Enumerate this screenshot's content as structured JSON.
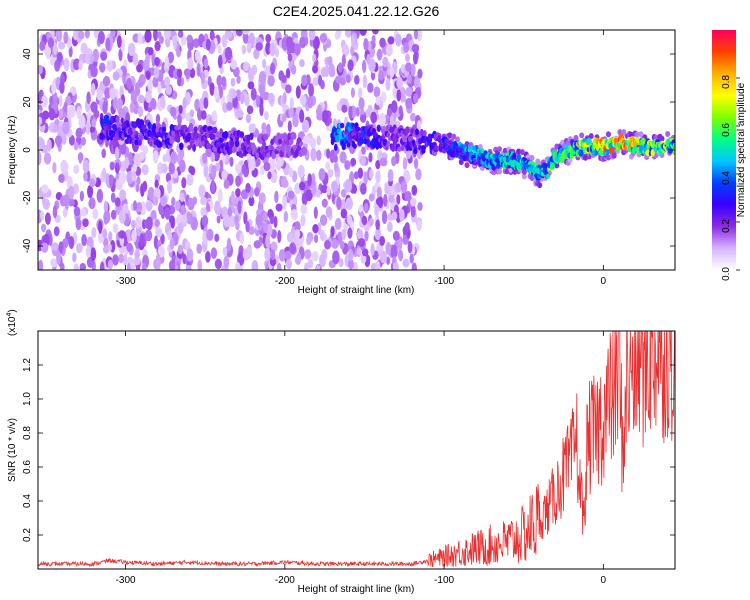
{
  "title": "C2E4.2025.041.22.12.G26",
  "chart_data": [
    {
      "type": "heatmap",
      "xlabel": "Height of straight line (km)",
      "ylabel": "Frequency (Hz)",
      "xlim": [
        -355,
        45
      ],
      "ylim": [
        -50,
        50
      ],
      "xticks": [
        -300,
        -200,
        -100,
        0
      ],
      "yticks": [
        -40,
        -20,
        0,
        20,
        40
      ],
      "colorbar": {
        "label": "Normalized spectral amplitude",
        "range": [
          0,
          1
        ],
        "ticks": [
          "0.0",
          "0.2",
          "0.4",
          "0.6",
          "0.8"
        ],
        "colormap": [
          "#ffffff",
          "#d6b3ff",
          "#8a2be2",
          "#3a00ff",
          "#0040ff",
          "#00c8ff",
          "#00ff80",
          "#7fff00",
          "#ffff00",
          "#ffb000",
          "#ff4000",
          "#ff0060"
        ]
      },
      "ridge": [
        {
          "x": -315,
          "y": 10,
          "a": 0.3
        },
        {
          "x": -300,
          "y": 8,
          "a": 0.25
        },
        {
          "x": -285,
          "y": 7,
          "a": 0.28
        },
        {
          "x": -270,
          "y": 6,
          "a": 0.25
        },
        {
          "x": -255,
          "y": 5,
          "a": 0.22
        },
        {
          "x": -240,
          "y": 4,
          "a": 0.26
        },
        {
          "x": -225,
          "y": 2,
          "a": 0.22
        },
        {
          "x": -210,
          "y": 1,
          "a": 0.2
        },
        {
          "x": -195,
          "y": 2,
          "a": 0.18
        },
        {
          "x": -165,
          "y": 6,
          "a": 0.4
        },
        {
          "x": -130,
          "y": 5,
          "a": 0.2
        },
        {
          "x": -115,
          "y": 3,
          "a": 0.25
        },
        {
          "x": -100,
          "y": 2,
          "a": 0.3
        },
        {
          "x": -90,
          "y": 0,
          "a": 0.35
        },
        {
          "x": -80,
          "y": -3,
          "a": 0.4
        },
        {
          "x": -70,
          "y": -5,
          "a": 0.45
        },
        {
          "x": -60,
          "y": -4,
          "a": 0.5
        },
        {
          "x": -50,
          "y": -6,
          "a": 0.55
        },
        {
          "x": -40,
          "y": -10,
          "a": 0.5
        },
        {
          "x": -30,
          "y": -3,
          "a": 0.6
        },
        {
          "x": -20,
          "y": 0,
          "a": 0.65
        },
        {
          "x": -10,
          "y": 2,
          "a": 0.7
        },
        {
          "x": 0,
          "y": 1,
          "a": 0.75
        },
        {
          "x": 10,
          "y": 3,
          "a": 0.8
        },
        {
          "x": 20,
          "y": 2,
          "a": 0.7
        },
        {
          "x": 30,
          "y": 1,
          "a": 0.65
        },
        {
          "x": 40,
          "y": 2,
          "a": 0.6
        }
      ],
      "noise_extent_x": [
        -355,
        -115
      ]
    },
    {
      "type": "line",
      "xlabel": "Height of straight line (km)",
      "ylabel": "SNR (10 * v/v)",
      "y_multiplier_label": "(x10",
      "y_multiplier_exp": "4",
      "y_multiplier_close": ")",
      "xlim": [
        -355,
        45
      ],
      "ylim": [
        0,
        1.4
      ],
      "xticks": [
        -300,
        -200,
        -100,
        0
      ],
      "yticks": [
        0.2,
        0.4,
        0.6,
        0.8,
        1.0,
        1.2
      ],
      "series_color": "#e83030",
      "series": [
        {
          "x": [
            -355,
            -320,
            -310,
            -300,
            -280,
            -260,
            -240,
            -220,
            -200,
            -180,
            -160,
            -140,
            -120,
            -110,
            -100,
            -90,
            -80,
            -70,
            -60,
            -50,
            -45,
            -40,
            -35,
            -30,
            -25,
            -20,
            -17,
            -15,
            -12,
            -10,
            -5,
            0,
            5,
            10,
            12,
            15,
            20,
            25,
            30,
            35,
            40,
            45
          ],
          "y": [
            0.03,
            0.03,
            0.05,
            0.04,
            0.03,
            0.04,
            0.03,
            0.03,
            0.04,
            0.03,
            0.03,
            0.03,
            0.03,
            0.05,
            0.07,
            0.1,
            0.12,
            0.14,
            0.16,
            0.2,
            0.25,
            0.3,
            0.35,
            0.45,
            0.55,
            0.62,
            0.8,
            0.5,
            0.3,
            0.75,
            0.8,
            0.9,
            1.0,
            1.2,
            0.7,
            1.1,
            1.2,
            1.25,
            1.3,
            1.33,
            1.34,
            1.35
          ]
        }
      ]
    }
  ]
}
